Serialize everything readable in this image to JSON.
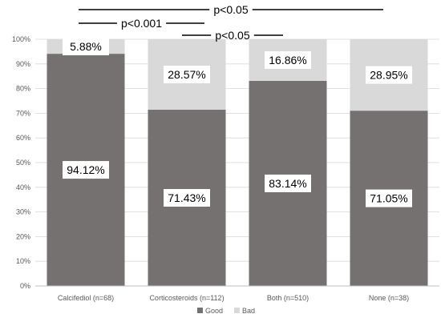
{
  "chart_data": {
    "type": "bar",
    "stacked": true,
    "percent": true,
    "categories": [
      "Calcifediol (n=68)",
      "Corticosteroids (n=112)",
      "Both (n=510)",
      "None (n=38)"
    ],
    "series": [
      {
        "name": "Good",
        "color": "#767171",
        "values": [
          94.12,
          71.43,
          83.14,
          71.05
        ],
        "labels": [
          "94.12%",
          "71.43%",
          "83.14%",
          "71.05%"
        ]
      },
      {
        "name": "Bad",
        "color": "#d9d9d9",
        "values": [
          5.88,
          28.57,
          16.86,
          28.95
        ],
        "labels": [
          "5.88%",
          "28.57%",
          "16.86%",
          "28.95%"
        ]
      }
    ],
    "ylim": [
      0,
      100
    ],
    "yticks": [
      "0%",
      "10%",
      "20%",
      "30%",
      "40%",
      "50%",
      "60%",
      "70%",
      "80%",
      "90%",
      "100%"
    ],
    "legend_position": "bottom",
    "grid": true,
    "annotations": [
      {
        "text": "p<0.05",
        "from": 0,
        "to": 3
      },
      {
        "text": "p<0.001",
        "from": 0,
        "to": 1
      },
      {
        "text": "p<0.05",
        "from": 1,
        "to": 2
      }
    ]
  }
}
